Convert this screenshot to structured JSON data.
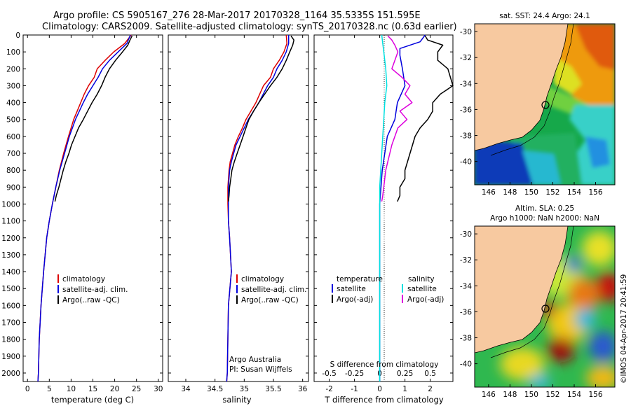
{
  "header": {
    "line1": "Argo profile: CS 5905167_276 28-Mar-2017 20170328_1164 35.5335S 151.595E",
    "line2": "Climatology: CARS2009. Satellite-adjusted climatology: synTS_20170328.nc (0.63d earlier)"
  },
  "credit": "Argo Australia",
  "pi": "PI: Susan Wijffels",
  "stamp": "©IMOS 04-Apr-2017 20:41:59",
  "colors": {
    "clim": "#dd0000",
    "sat": "#0000dd",
    "argo": "#000000",
    "cyan": "#00e0e0",
    "magenta": "#dd00dd",
    "land": "#f7c9a0"
  },
  "chart_data": [
    {
      "id": "temp",
      "type": "line",
      "xlabel": "temperature (deg C)",
      "ylabel": "",
      "xlim": [
        -1,
        31
      ],
      "ylim": [
        2050,
        0
      ],
      "xticks": [
        "0",
        "5",
        "10",
        "15",
        "20",
        "25",
        "30"
      ],
      "xtick_values": [
        0,
        5,
        10,
        15,
        20,
        25,
        30
      ],
      "yticks": [
        "0",
        "100",
        "200",
        "300",
        "400",
        "500",
        "600",
        "700",
        "800",
        "900",
        "1000",
        "1100",
        "1200",
        "1300",
        "1400",
        "1500",
        "1600",
        "1700",
        "1800",
        "1900",
        "2000"
      ],
      "legend": [
        "climatology",
        "satellite-adj. clim.",
        "Argo(..raw -QC)"
      ],
      "legend_position": "lower-center",
      "series": [
        {
          "name": "climatology",
          "color": "#dd0000",
          "depth": [
            0,
            50,
            100,
            150,
            200,
            250,
            300,
            350,
            400,
            450,
            500,
            550,
            600,
            700,
            800,
            900,
            1000,
            1100,
            1200,
            1400,
            1600,
            1800,
            2000,
            2050
          ],
          "values": [
            23.8,
            22.3,
            19.8,
            17.8,
            16.0,
            15.3,
            14.0,
            13.0,
            12.2,
            11.4,
            10.6,
            10.0,
            9.4,
            8.3,
            7.3,
            6.5,
            5.7,
            5.0,
            4.4,
            3.7,
            3.1,
            2.7,
            2.5,
            2.4
          ]
        },
        {
          "name": "satellite-adj. clim.",
          "color": "#0000dd",
          "depth": [
            0,
            50,
            100,
            150,
            200,
            250,
            300,
            350,
            400,
            450,
            500,
            550,
            600,
            700,
            800,
            900,
            1000,
            1100,
            1200,
            1400,
            1600,
            1800,
            2000,
            2050
          ],
          "values": [
            23.6,
            22.8,
            20.8,
            18.8,
            17.2,
            16.2,
            15.0,
            13.8,
            12.8,
            11.9,
            11.0,
            10.3,
            9.6,
            8.5,
            7.4,
            6.5,
            5.7,
            5.0,
            4.4,
            3.7,
            3.1,
            2.7,
            2.5,
            2.4
          ]
        },
        {
          "name": "Argo(..raw -QC)",
          "color": "#000000",
          "depth": [
            5,
            30,
            60,
            100,
            150,
            200,
            250,
            300,
            350,
            400,
            450,
            500,
            550,
            600,
            650,
            700,
            750,
            800,
            850,
            900,
            950,
            985
          ],
          "values": [
            24.0,
            23.5,
            23.0,
            21.8,
            20.2,
            18.8,
            17.8,
            17.0,
            16.0,
            14.8,
            13.8,
            12.8,
            11.7,
            10.9,
            10.1,
            9.5,
            8.8,
            8.2,
            7.7,
            7.2,
            6.6,
            6.3
          ]
        }
      ]
    },
    {
      "id": "sal",
      "type": "line",
      "xlabel": "salinity",
      "ylabel": "",
      "xlim": [
        33.7,
        36.1
      ],
      "ylim": [
        2050,
        0
      ],
      "xticks": [
        "34",
        "34.5",
        "35",
        "35.5",
        "36"
      ],
      "xtick_values": [
        34,
        34.5,
        35,
        35.5,
        36
      ],
      "legend": [
        "climatology",
        "satellite-adj. clim.",
        "Argo(..raw -QC)"
      ],
      "legend_position": "lower-center",
      "series": [
        {
          "name": "climatology",
          "color": "#dd0000",
          "depth": [
            0,
            50,
            100,
            150,
            200,
            250,
            300,
            400,
            500,
            550,
            600,
            650,
            700,
            750,
            800,
            900,
            1000,
            1100,
            1200,
            1400,
            1600,
            1800,
            2000,
            2050
          ],
          "values": [
            35.72,
            35.73,
            35.68,
            35.6,
            35.5,
            35.45,
            35.33,
            35.2,
            35.03,
            34.97,
            34.9,
            34.84,
            34.8,
            34.76,
            34.74,
            34.72,
            34.72,
            34.73,
            34.75,
            34.78,
            34.73,
            34.72,
            34.71,
            34.7
          ]
        },
        {
          "name": "satellite-adj. clim.",
          "color": "#0000dd",
          "depth": [
            0,
            50,
            100,
            150,
            200,
            250,
            300,
            400,
            500,
            550,
            600,
            650,
            700,
            750,
            800,
            900,
            1000,
            1100,
            1200,
            1400,
            1600,
            1800,
            2000,
            2050
          ],
          "values": [
            35.76,
            35.76,
            35.72,
            35.65,
            35.56,
            35.5,
            35.4,
            35.25,
            35.07,
            35.0,
            34.93,
            34.86,
            34.82,
            34.78,
            34.75,
            34.73,
            34.73,
            34.73,
            34.75,
            34.78,
            34.73,
            34.72,
            34.71,
            34.7
          ]
        },
        {
          "name": "Argo(..raw -QC)",
          "color": "#000000",
          "depth": [
            5,
            30,
            60,
            100,
            150,
            200,
            250,
            300,
            350,
            400,
            450,
            500,
            550,
            600,
            650,
            700,
            750,
            800,
            850,
            900,
            950,
            985
          ],
          "values": [
            35.8,
            35.85,
            35.83,
            35.78,
            35.72,
            35.65,
            35.56,
            35.45,
            35.35,
            35.25,
            35.16,
            35.08,
            35.03,
            34.98,
            34.93,
            34.88,
            34.83,
            34.79,
            34.77,
            34.75,
            34.74,
            34.73
          ]
        }
      ]
    },
    {
      "id": "diff",
      "type": "line",
      "xlabel": "T difference from climatology",
      "xlabel_top": "S difference from climatology",
      "xlim": [
        -2.6,
        2.9
      ],
      "ylim": [
        2050,
        0
      ],
      "xticks": [
        "-2",
        "-1",
        "0",
        "1",
        "2"
      ],
      "xtick_values": [
        -2,
        -1,
        0,
        1,
        2
      ],
      "xticks_top": [
        "-0.5",
        "-0.25",
        "0",
        "0.25",
        "0.5"
      ],
      "xtick_top_values": [
        -0.5,
        -0.25,
        0,
        0.25,
        0.5
      ],
      "legend_left_title": "temperature",
      "legend_right_title": "salinity",
      "legend": [
        "satellite",
        "Argo(-adj)",
        "satellite",
        "Argo(-adj)"
      ],
      "series": [
        {
          "name": "temperature satellite",
          "color": "#0000dd",
          "unit": "T",
          "depth": [
            0,
            40,
            80,
            120,
            200,
            300,
            400,
            500,
            600,
            700,
            800,
            900,
            1000,
            1100,
            1200,
            1400,
            1600,
            1800,
            2000,
            2050
          ],
          "values": [
            1.8,
            1.6,
            0.8,
            0.8,
            0.9,
            1.0,
            0.7,
            0.6,
            0.3,
            0.2,
            0.1,
            0.05,
            0.0,
            0.0,
            0.0,
            0.0,
            0.0,
            0.0,
            0.0,
            0.0
          ]
        },
        {
          "name": "temperature Argo(-adj)",
          "color": "#000000",
          "unit": "T",
          "depth": [
            5,
            30,
            60,
            100,
            150,
            200,
            250,
            300,
            350,
            400,
            450,
            500,
            550,
            600,
            650,
            700,
            750,
            800,
            850,
            900,
            950,
            985
          ],
          "values": [
            1.8,
            1.9,
            2.5,
            2.3,
            2.3,
            2.7,
            2.8,
            2.9,
            2.4,
            2.1,
            2.1,
            1.9,
            1.6,
            1.4,
            1.3,
            1.2,
            1.1,
            1.0,
            1.0,
            0.8,
            0.8,
            0.7
          ]
        },
        {
          "name": "salinity satellite",
          "color": "#00e0e0",
          "unit": "S",
          "depth": [
            0,
            50,
            100,
            200,
            300,
            400,
            500,
            600,
            700,
            800,
            900,
            1000,
            1100,
            1200,
            1400,
            1600,
            1800,
            2000,
            2050
          ],
          "values": [
            0.02,
            0.03,
            0.04,
            0.06,
            0.07,
            0.05,
            0.04,
            0.03,
            0.02,
            0.01,
            0.0,
            0.0,
            0.0,
            0.0,
            0.0,
            0.0,
            0.0,
            0.0,
            0.0
          ]
        },
        {
          "name": "salinity Argo(-adj)",
          "color": "#dd00dd",
          "unit": "S",
          "depth": [
            5,
            30,
            60,
            100,
            150,
            200,
            250,
            300,
            350,
            400,
            450,
            500,
            550,
            600,
            650,
            700,
            750,
            800,
            850,
            900,
            950,
            985
          ],
          "values": [
            0.08,
            0.12,
            0.15,
            0.18,
            0.15,
            0.12,
            0.22,
            0.3,
            0.25,
            0.32,
            0.2,
            0.27,
            0.18,
            0.15,
            0.12,
            0.1,
            0.08,
            0.06,
            0.05,
            0.04,
            0.03,
            0.02
          ]
        }
      ]
    }
  ],
  "maps": [
    {
      "id": "sst",
      "title": "sat. SST: 24.4 Argo: 24.1",
      "type": "heatmap",
      "lon_ticks": [
        "146",
        "148",
        "150",
        "152",
        "154",
        "156"
      ],
      "lat_ticks": [
        "-30",
        "-32",
        "-34",
        "-36",
        "-38",
        "-40"
      ]
    },
    {
      "id": "sla",
      "title1": "Altim. SLA: 0.25",
      "title2": "Argo h1000: NaN h2000: NaN",
      "type": "heatmap",
      "lon_ticks": [
        "146",
        "148",
        "150",
        "152",
        "154",
        "156"
      ],
      "lat_ticks": [
        "-30",
        "-32",
        "-34",
        "-36",
        "-38",
        "-40"
      ]
    }
  ]
}
